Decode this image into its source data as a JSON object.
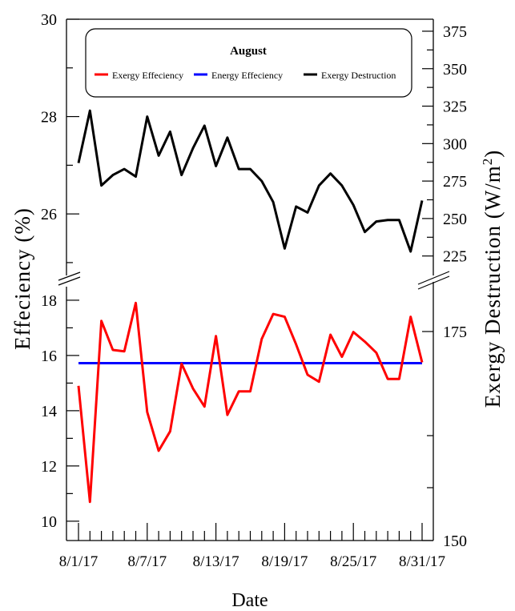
{
  "chart_data": {
    "type": "line",
    "legend_title": "August",
    "legend_position": "top",
    "xlabel": "Date",
    "ylabel_left": "Effeciency (%)",
    "ylabel_right": "Exergy Destruction (W/m",
    "ylabel_right_sup": "2",
    "ylabel_right_close": ")",
    "x_ticks": [
      "8/1/17",
      "8/7/17",
      "8/13/17",
      "8/19/17",
      "8/25/17",
      "8/31/17"
    ],
    "left_axis_upper": {
      "range": [
        24.9,
        30
      ],
      "ticks": [
        "26",
        "28",
        "30"
      ]
    },
    "left_axis_lower": {
      "range": [
        9.3,
        18.2
      ],
      "ticks": [
        "10",
        "12",
        "14",
        "16",
        "18"
      ]
    },
    "right_axis_upper": {
      "range": [
        212,
        383
      ],
      "ticks": [
        "225",
        "250",
        "275",
        "300",
        "325",
        "350",
        "375"
      ]
    },
    "right_axis_lower": {
      "labels": [
        "175",
        "150"
      ]
    },
    "series": [
      {
        "name": "Exergy Effeciency",
        "color": "#ff0000",
        "axis": "left",
        "values": [
          14.9,
          10.7,
          17.25,
          16.2,
          16.15,
          17.9,
          13.95,
          12.55,
          13.25,
          15.7,
          14.8,
          14.15,
          16.7,
          13.85,
          14.7,
          14.7,
          16.6,
          17.5,
          17.4,
          16.4,
          15.3,
          15.05,
          16.75,
          15.95,
          16.85,
          16.5,
          16.1,
          15.15,
          15.15,
          17.4,
          15.75
        ]
      },
      {
        "name": "Energy Effeciency",
        "color": "#0000ff",
        "axis": "left",
        "values": [
          15.72,
          15.72,
          15.72,
          15.72,
          15.72,
          15.72,
          15.72,
          15.72,
          15.72,
          15.72,
          15.72,
          15.72,
          15.72,
          15.72,
          15.72,
          15.72,
          15.72,
          15.72,
          15.72,
          15.72,
          15.72,
          15.72,
          15.72,
          15.72,
          15.72,
          15.72,
          15.72,
          15.72,
          15.72,
          15.72,
          15.72
        ]
      },
      {
        "name": "Exergy Destruction",
        "color": "#000000",
        "axis": "right",
        "values": [
          287,
          322,
          272,
          279,
          283,
          278,
          318,
          292,
          308,
          279,
          297,
          312,
          285,
          304,
          283,
          283,
          275,
          261,
          230,
          258,
          254,
          272,
          280,
          272,
          259,
          241,
          248,
          249,
          249,
          228,
          262
        ]
      }
    ]
  }
}
